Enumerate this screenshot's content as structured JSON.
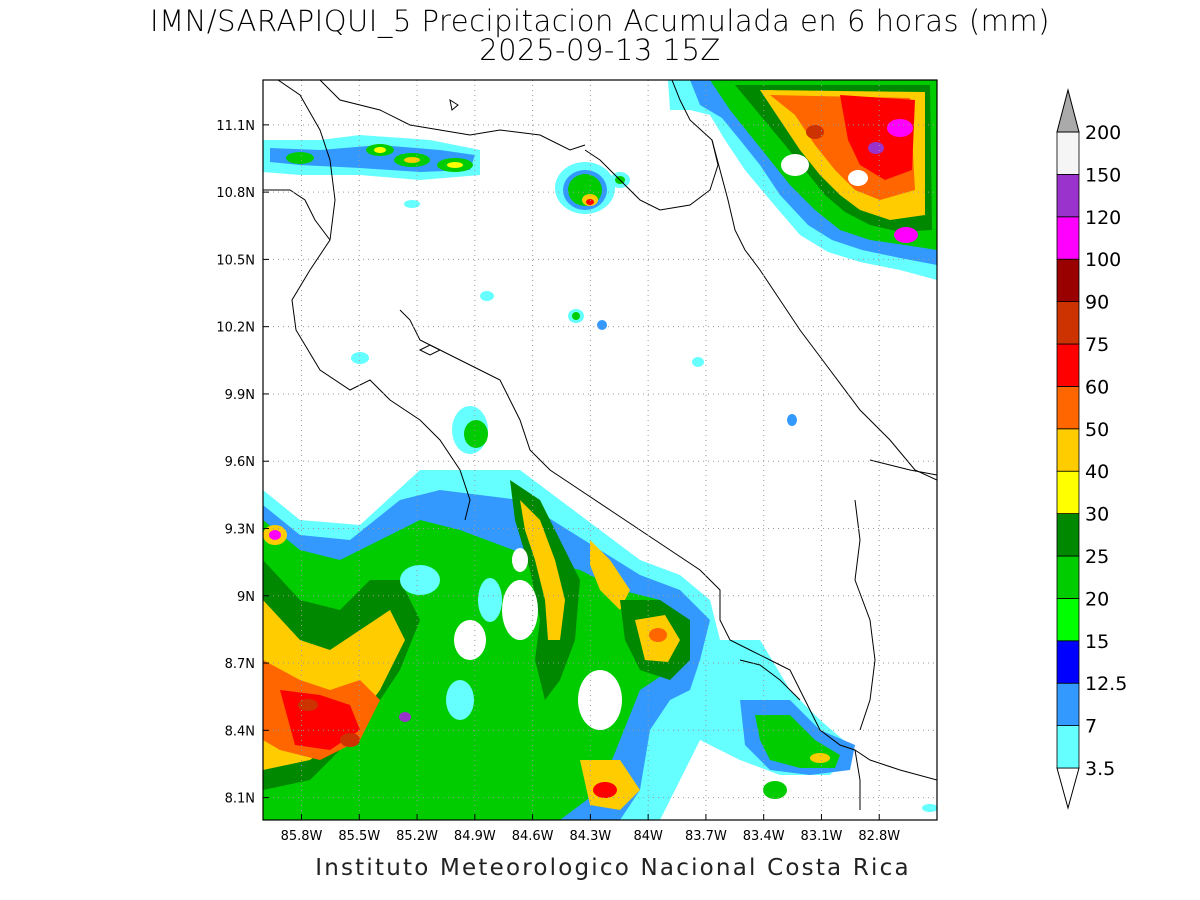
{
  "title": {
    "line1": "IMN/SARAPIQUI_5 Precipitacion Acumulada en 6 horas (mm)",
    "line2": "2025-09-13 15Z"
  },
  "credit": "Instituto Meteorologico Nacional Costa Rica",
  "map": {
    "lon_range": [
      -86.0,
      -82.5
    ],
    "lat_range": [
      8.0,
      11.3
    ],
    "grid": "dotted",
    "x_ticks": [
      {
        "value": -85.8,
        "label": "85.8W"
      },
      {
        "value": -85.5,
        "label": "85.5W"
      },
      {
        "value": -85.2,
        "label": "85.2W"
      },
      {
        "value": -84.9,
        "label": "84.9W"
      },
      {
        "value": -84.6,
        "label": "84.6W"
      },
      {
        "value": -84.3,
        "label": "84.3W"
      },
      {
        "value": -84.0,
        "label": "84W"
      },
      {
        "value": -83.7,
        "label": "83.7W"
      },
      {
        "value": -83.4,
        "label": "83.4W"
      },
      {
        "value": -83.1,
        "label": "83.1W"
      },
      {
        "value": -82.8,
        "label": "82.8W"
      }
    ],
    "y_ticks": [
      {
        "value": 11.1,
        "label": "11.1N"
      },
      {
        "value": 10.8,
        "label": "10.8N"
      },
      {
        "value": 10.5,
        "label": "10.5N"
      },
      {
        "value": 10.2,
        "label": "10.2N"
      },
      {
        "value": 9.9,
        "label": "9.9N"
      },
      {
        "value": 9.6,
        "label": "9.6N"
      },
      {
        "value": 9.3,
        "label": "9.3N"
      },
      {
        "value": 9.0,
        "label": "9N"
      },
      {
        "value": 8.7,
        "label": "8.7N"
      },
      {
        "value": 8.4,
        "label": "8.4N"
      },
      {
        "value": 8.1,
        "label": "8.1N"
      }
    ]
  },
  "colorbar": {
    "levels": [
      {
        "label": "3.5",
        "color": "#66ffff"
      },
      {
        "label": "7",
        "color": "#3399ff"
      },
      {
        "label": "12.5",
        "color": "#0000ff"
      },
      {
        "label": "15",
        "color": "#00ff00"
      },
      {
        "label": "20",
        "color": "#00cc00"
      },
      {
        "label": "25",
        "color": "#008800"
      },
      {
        "label": "30",
        "color": "#ffff00"
      },
      {
        "label": "40",
        "color": "#ffcc00"
      },
      {
        "label": "50",
        "color": "#ff6600"
      },
      {
        "label": "60",
        "color": "#ff0000"
      },
      {
        "label": "75",
        "color": "#cc3300"
      },
      {
        "label": "90",
        "color": "#990000"
      },
      {
        "label": "100",
        "color": "#ff00ff"
      },
      {
        "label": "120",
        "color": "#9933cc"
      },
      {
        "label": "150",
        "color": "#f5f5f5"
      },
      {
        "label": "200",
        "color": "#aaaaaa"
      }
    ]
  }
}
